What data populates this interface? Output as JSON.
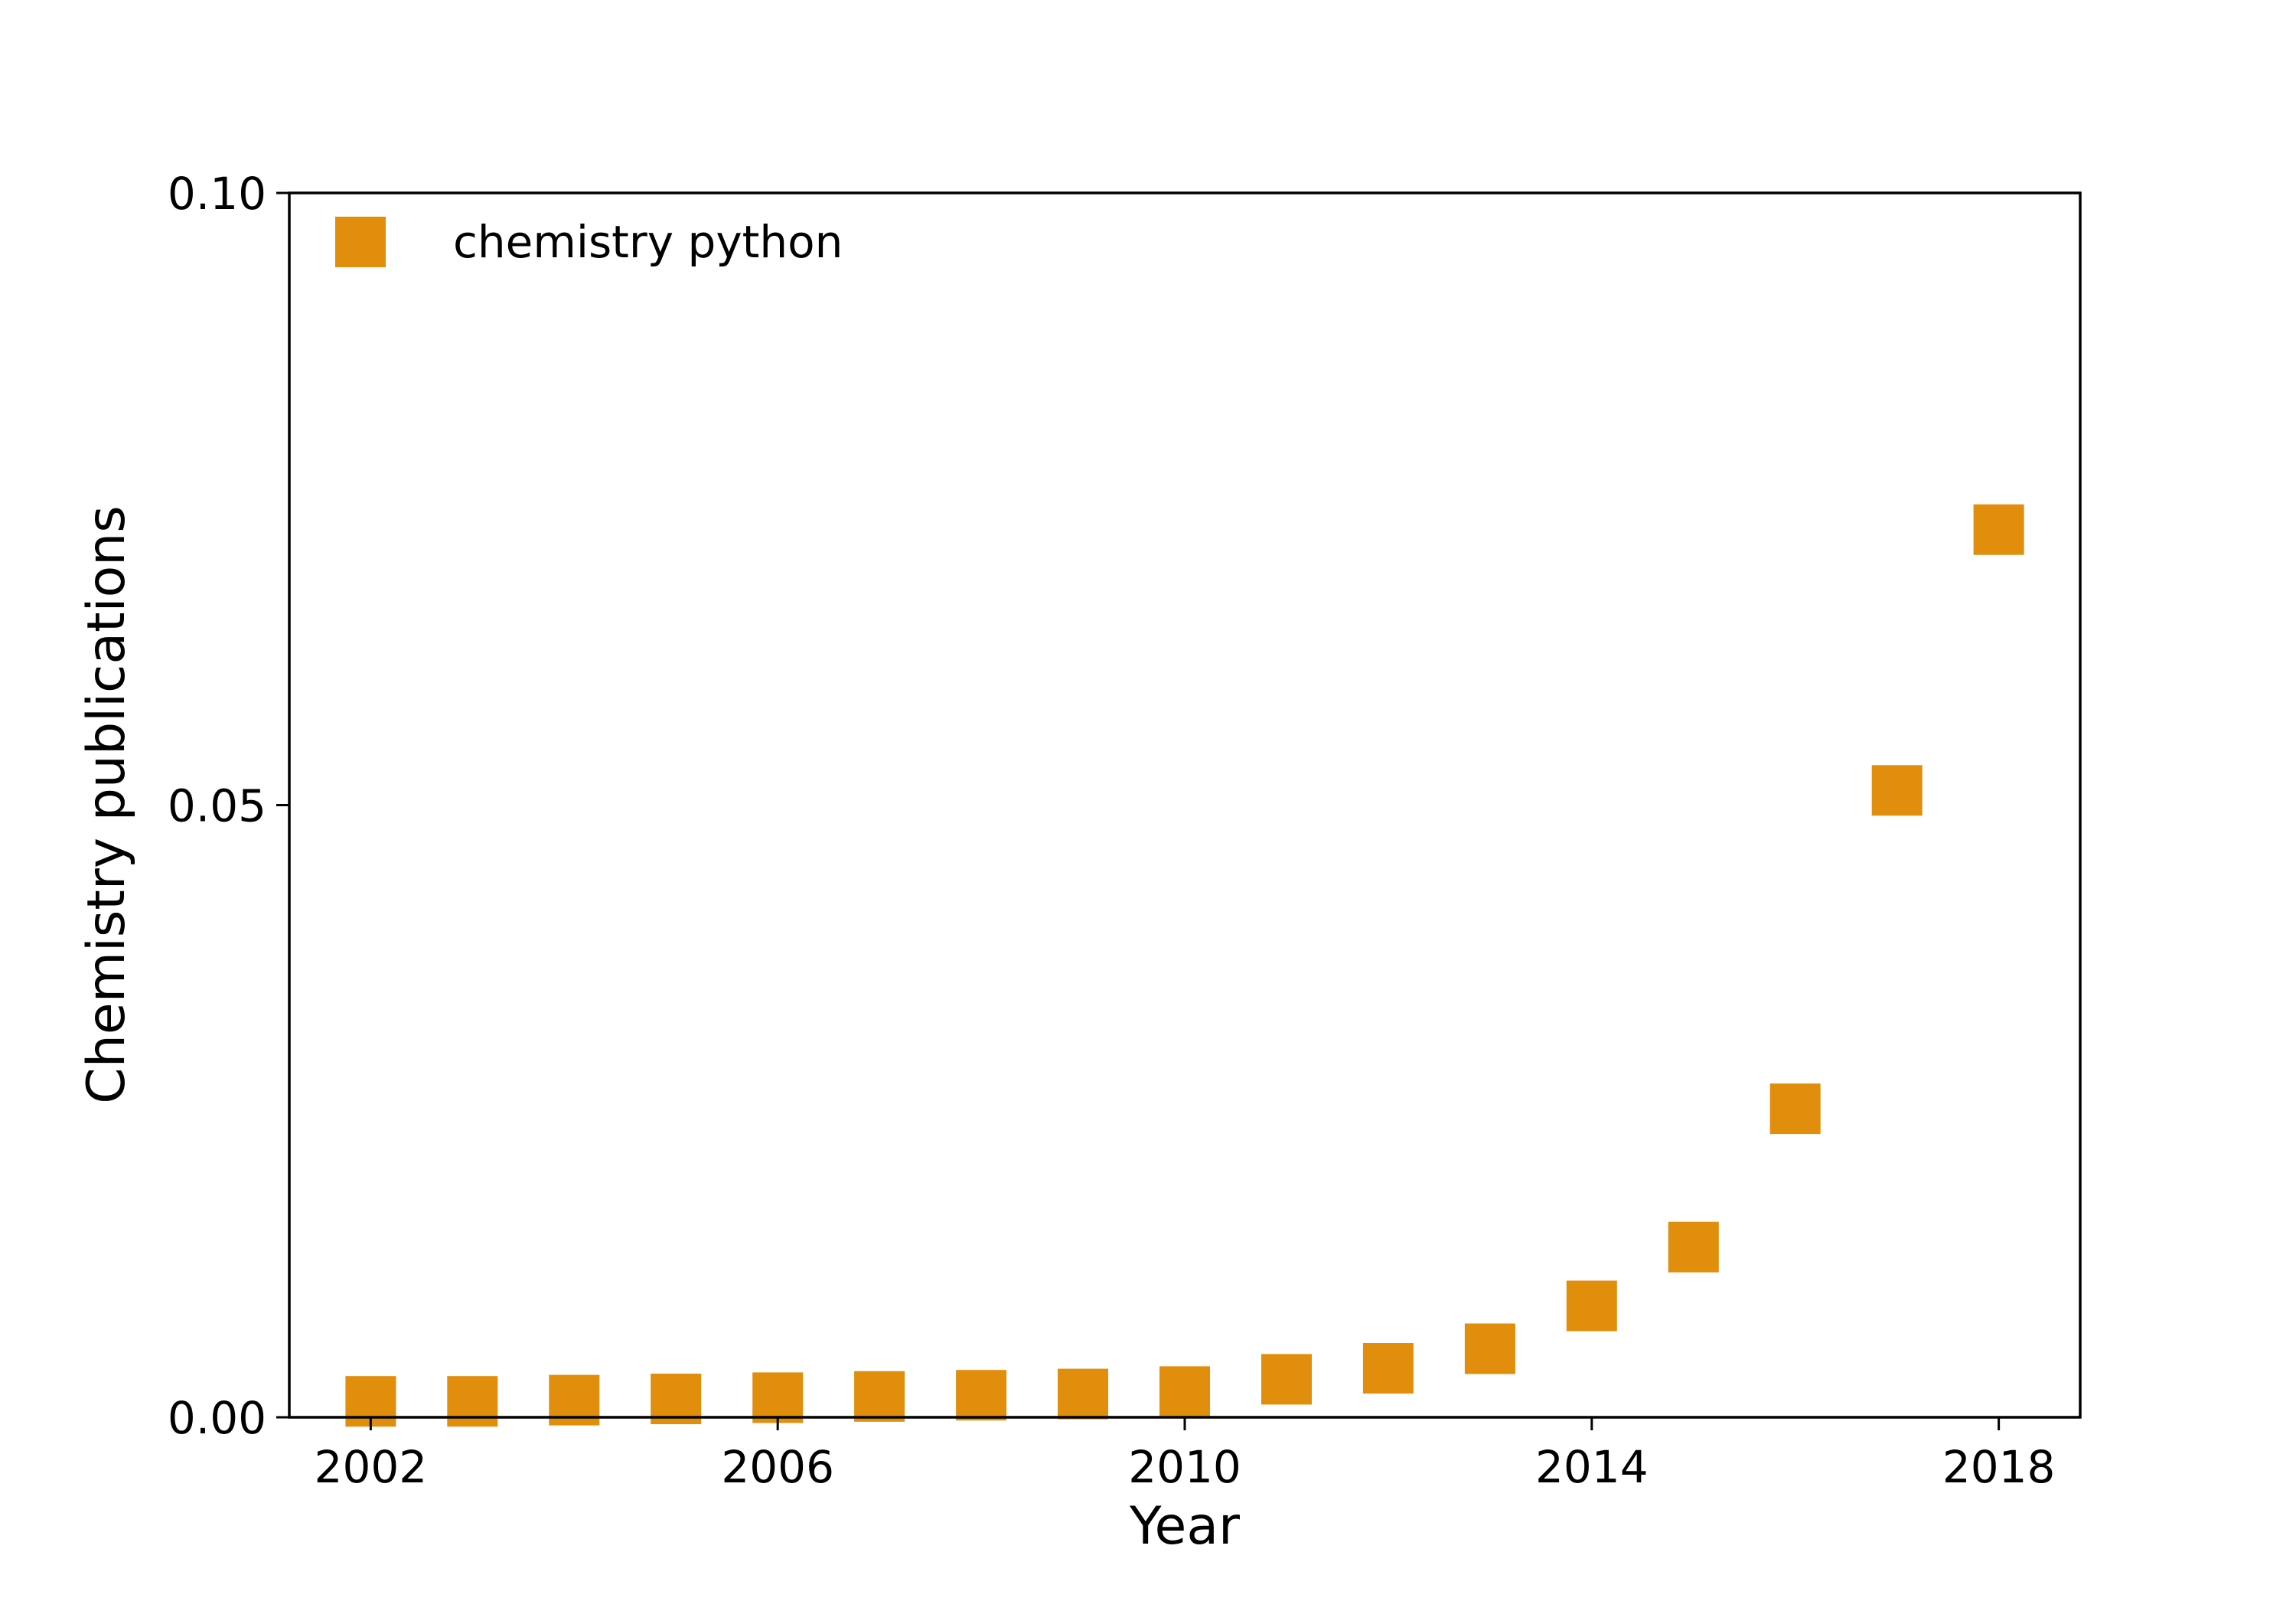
{
  "chart_data": {
    "type": "scatter",
    "xlabel": "Year",
    "ylabel": "Chemistry publications",
    "xlim": [
      2001.2,
      2018.8
    ],
    "ylim": [
      0.0,
      0.1
    ],
    "xticks": [
      2002,
      2006,
      2010,
      2014,
      2018
    ],
    "xtick_labels": [
      "2002",
      "2006",
      "2010",
      "2014",
      "2018"
    ],
    "yticks": [
      0.0,
      0.05,
      0.1
    ],
    "ytick_labels": [
      "0.00",
      "0.05",
      "0.10"
    ],
    "grid": false,
    "legend_position": "top-left",
    "marker": "square",
    "series": [
      {
        "name": "chemistry python",
        "color": "#e08e0b",
        "x": [
          2002,
          2003,
          2004,
          2005,
          2006,
          2007,
          2008,
          2009,
          2010,
          2011,
          2012,
          2013,
          2014,
          2015,
          2016,
          2017,
          2018
        ],
        "y": [
          0.0013,
          0.0013,
          0.0014,
          0.0015,
          0.0016,
          0.0017,
          0.0018,
          0.0019,
          0.0021,
          0.0031,
          0.004,
          0.0056,
          0.0091,
          0.0139,
          0.0252,
          0.0512,
          0.0725
        ]
      }
    ]
  }
}
